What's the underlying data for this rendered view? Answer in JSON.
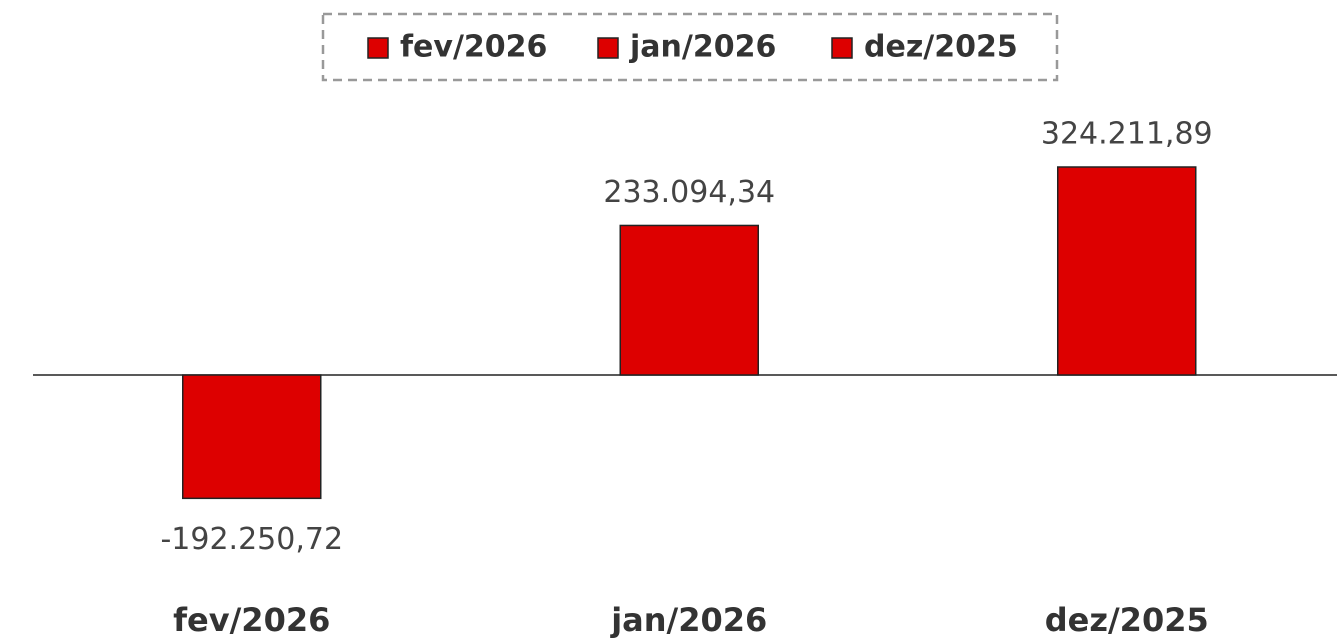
{
  "chart_data": {
    "type": "bar",
    "categories": [
      "fev/2026",
      "jan/2026",
      "dez/2025"
    ],
    "values": [
      -192250.72,
      233094.34,
      324211.89
    ],
    "value_labels": [
      "-192.250,72",
      "233.094,34",
      "324.211,89"
    ],
    "color": "#dd0000",
    "legend": "top"
  }
}
